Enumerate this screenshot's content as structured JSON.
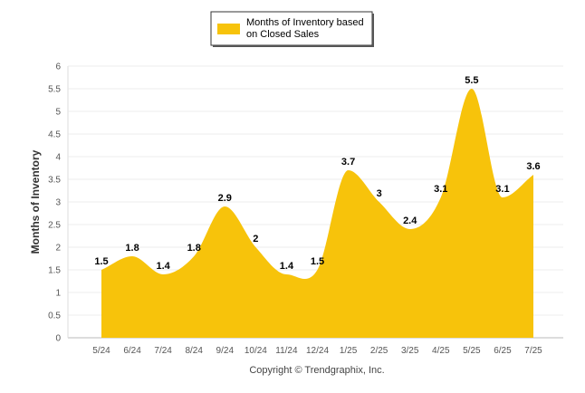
{
  "chart_data": {
    "type": "area",
    "categories": [
      "5/24",
      "6/24",
      "7/24",
      "8/24",
      "9/24",
      "10/24",
      "11/24",
      "12/24",
      "1/25",
      "2/25",
      "3/25",
      "4/25",
      "5/25",
      "6/25",
      "7/25"
    ],
    "series": [
      {
        "name": "Months of Inventory based on Closed Sales",
        "values": [
          1.5,
          1.8,
          1.4,
          1.8,
          2.9,
          2,
          1.4,
          1.5,
          3.7,
          3,
          2.4,
          3.1,
          5.5,
          3.1,
          3.6
        ],
        "color": "#F7C30B"
      }
    ],
    "data_labels": [
      "1.5",
      "1.8",
      "1.4",
      "1.8",
      "2.9",
      "2",
      "1.4",
      "1.5",
      "3.7",
      "3",
      "2.4",
      "3.1",
      "5.5",
      "3.1",
      "3.6"
    ],
    "ylabel": "Months of Inventory",
    "xlabel": "",
    "ylim": [
      0,
      6
    ],
    "yticks": [
      "0",
      "0.5",
      "1",
      "1.5",
      "2",
      "2.5",
      "3",
      "3.5",
      "4",
      "4.5",
      "5",
      "5.5",
      "6"
    ],
    "grid": true,
    "legend_position": "top-center",
    "legend": {
      "line1": "Months of Inventory based",
      "line2": "on Closed Sales"
    }
  },
  "credit": "Copyright © Trendgraphix, Inc."
}
